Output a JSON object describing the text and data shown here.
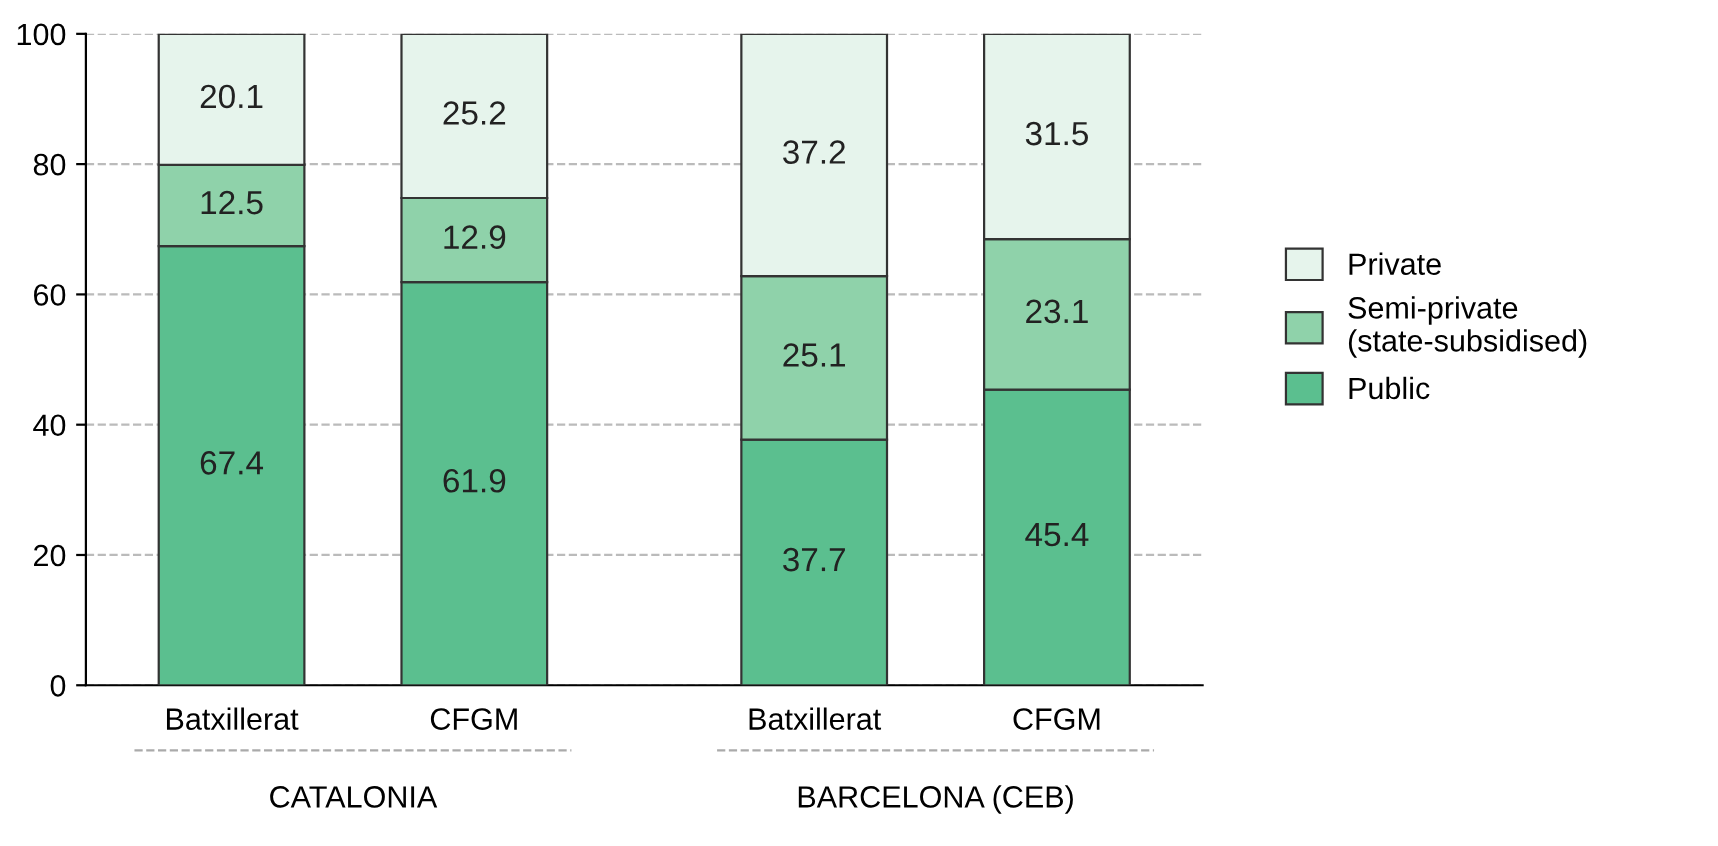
{
  "chart_data": {
    "type": "bar",
    "stacked": true,
    "categories": [
      "Batxillerat",
      "CFGM",
      "Batxillerat",
      "CFGM"
    ],
    "series": [
      {
        "name": "Public",
        "color": "#5bbf8f",
        "values": [
          67.4,
          61.9,
          37.7,
          45.4
        ]
      },
      {
        "name": "Semi-private\n(state-subsidised)",
        "color": "#8fd2aa",
        "values": [
          12.5,
          12.9,
          25.1,
          23.1
        ]
      },
      {
        "name": "Private",
        "color": "#e6f4ec",
        "values": [
          20.1,
          25.2,
          37.2,
          31.5
        ]
      }
    ],
    "annotations": [
      "CATALONIA",
      "BARCELONA (CEB)"
    ],
    "ylim": [
      0,
      100
    ],
    "yticks": [
      0,
      20,
      40,
      60,
      80,
      100
    ],
    "grid": "y",
    "legend": "right",
    "data_labels": true
  }
}
